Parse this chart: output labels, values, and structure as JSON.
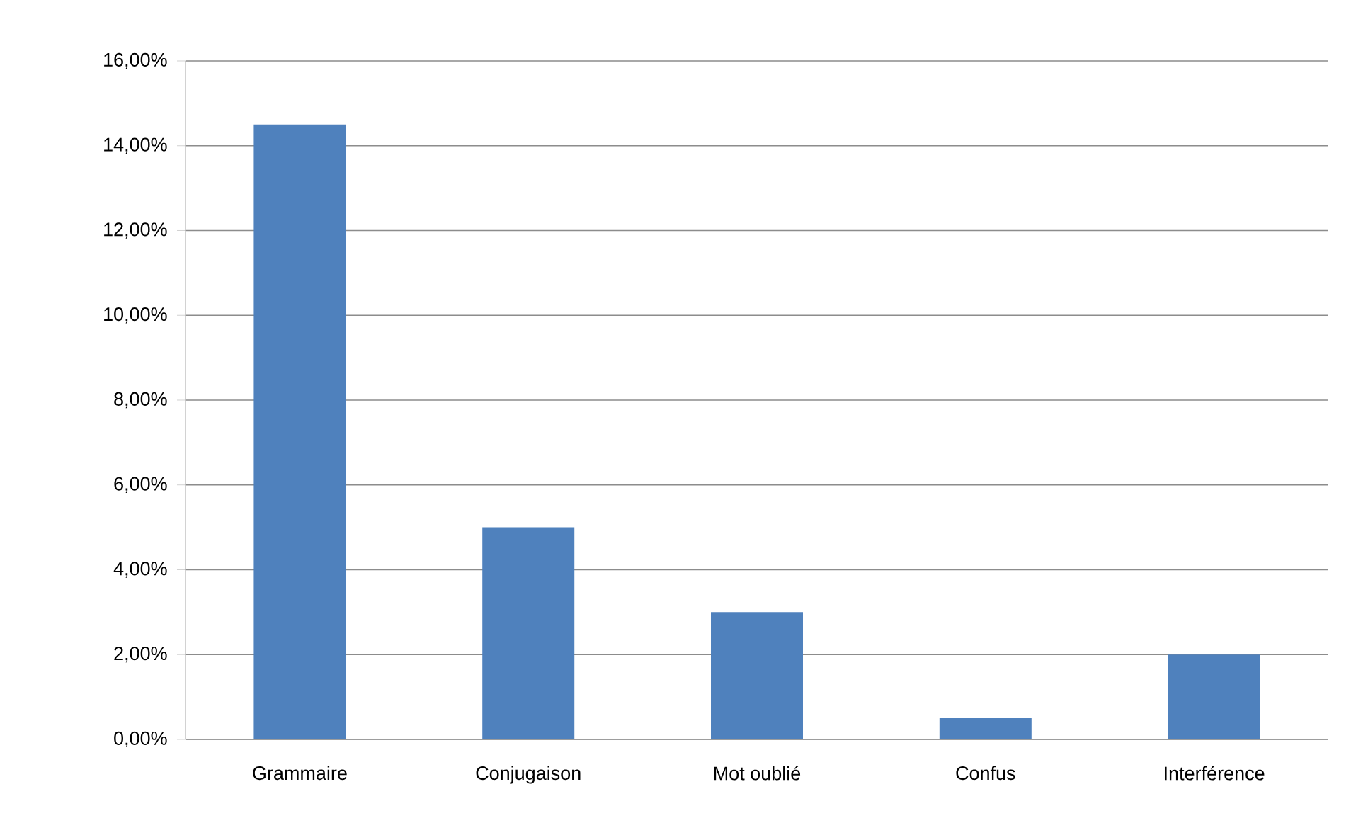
{
  "chart_data": {
    "type": "bar",
    "categories": [
      "Grammaire",
      "Conjugaison",
      "Mot oublié",
      "Confus",
      "Interférence"
    ],
    "values": [
      14.5,
      5.0,
      3.0,
      0.5,
      2.0
    ],
    "color": "#4f81bd",
    "ylim": [
      0,
      16
    ],
    "yticks": [
      {
        "value": 0,
        "label": "0,00%"
      },
      {
        "value": 2,
        "label": "2,00%"
      },
      {
        "value": 4,
        "label": "4,00%"
      },
      {
        "value": 6,
        "label": "6,00%"
      },
      {
        "value": 8,
        "label": "8,00%"
      },
      {
        "value": 10,
        "label": "10,00%"
      },
      {
        "value": 12,
        "label": "12,00%"
      },
      {
        "value": 14,
        "label": "14,00%"
      },
      {
        "value": 16,
        "label": "16,00%"
      }
    ],
    "grid": "y"
  }
}
